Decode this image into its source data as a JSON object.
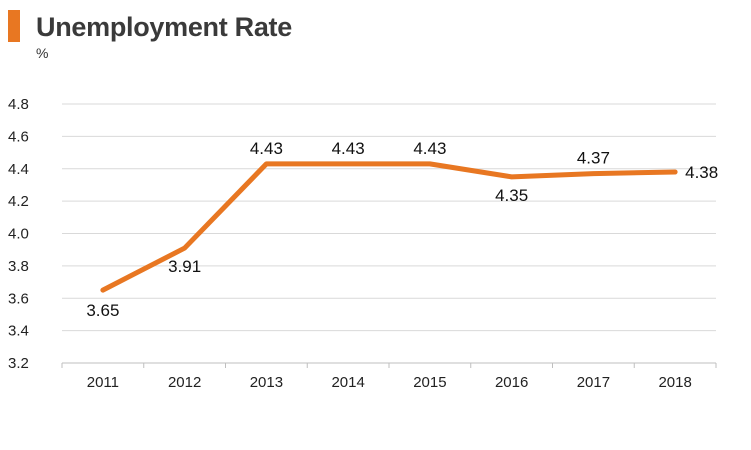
{
  "header": {
    "title": "Unemployment Rate",
    "unit": "%"
  },
  "colors": {
    "accent": "#E87722",
    "line": "#E87722",
    "grid": "#d9d9d9",
    "axis": "#bfbfbf"
  },
  "chart_data": {
    "type": "line",
    "title": "Unemployment Rate",
    "ylabel": "%",
    "xlabel": "",
    "categories": [
      "2011",
      "2012",
      "2013",
      "2014",
      "2015",
      "2016",
      "2017",
      "2018"
    ],
    "series": [
      {
        "name": "Unemployment Rate",
        "values": [
          3.65,
          3.91,
          4.43,
          4.43,
          4.43,
          4.35,
          4.37,
          4.38
        ],
        "labels": [
          "3.65",
          "3.91",
          "4.43",
          "4.43",
          "4.43",
          "4.35",
          "4.37",
          "4.38"
        ]
      }
    ],
    "ylim": [
      3.2,
      4.8
    ],
    "yticks": [
      "3.2",
      "3.4",
      "3.6",
      "3.8",
      "4.0",
      "4.2",
      "4.4",
      "4.6",
      "4.8"
    ],
    "grid": true,
    "legend": "none"
  }
}
